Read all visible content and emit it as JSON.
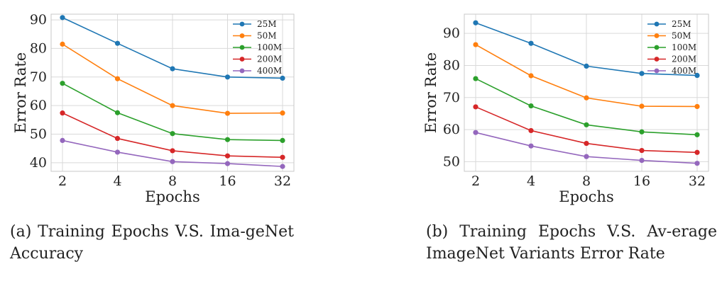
{
  "colors": {
    "25M": "#1f77b4",
    "50M": "#ff7f0e",
    "100M": "#2ca02c",
    "200M": "#d62728",
    "400M": "#9467bd"
  },
  "captions": [
    {
      "label": "(a)",
      "text": "Training Epochs V.S. ImageNet Accuracy",
      "rendered": "Training Epochs V.S. Ima-geNet Accuracy"
    },
    {
      "label": "(b)",
      "text": "Training Epochs V.S. Average ImageNet Variants Error Rate",
      "rendered": "Training Epochs V.S. Av-erage ImageNet Variants Error Rate"
    }
  ],
  "chart_data": [
    {
      "type": "line",
      "xlabel": "Epochs",
      "ylabel": "Error Rate",
      "x": [
        2,
        4,
        8,
        16,
        32
      ],
      "x_scale": "log2",
      "xticks": [
        "2",
        "4",
        "8",
        "16",
        "32"
      ],
      "ylim": [
        37,
        92
      ],
      "yticks": [
        40,
        50,
        60,
        70,
        80,
        90
      ],
      "grid": true,
      "legend_position": "top-right",
      "series": [
        {
          "name": "25M",
          "values": [
            90.8,
            81.8,
            72.9,
            70.0,
            69.6
          ]
        },
        {
          "name": "50M",
          "values": [
            81.5,
            69.4,
            60.0,
            57.3,
            57.4
          ]
        },
        {
          "name": "100M",
          "values": [
            67.8,
            57.5,
            50.2,
            48.1,
            47.8
          ]
        },
        {
          "name": "200M",
          "values": [
            57.4,
            48.5,
            44.2,
            42.4,
            41.9
          ]
        },
        {
          "name": "400M",
          "values": [
            47.8,
            43.7,
            40.4,
            39.7,
            38.7
          ]
        }
      ]
    },
    {
      "type": "line",
      "xlabel": "Epochs",
      "ylabel": "Error Rate",
      "x": [
        2,
        4,
        8,
        16,
        32
      ],
      "x_scale": "log2",
      "xticks": [
        "2",
        "4",
        "8",
        "16",
        "32"
      ],
      "ylim": [
        47,
        96
      ],
      "yticks": [
        50,
        60,
        70,
        80,
        90
      ],
      "grid": true,
      "legend_position": "top-right",
      "series": [
        {
          "name": "25M",
          "values": [
            93.3,
            86.9,
            79.8,
            77.5,
            76.9
          ]
        },
        {
          "name": "50M",
          "values": [
            86.5,
            76.8,
            69.9,
            67.3,
            67.2
          ]
        },
        {
          "name": "100M",
          "values": [
            75.9,
            67.4,
            61.5,
            59.3,
            58.4
          ]
        },
        {
          "name": "200M",
          "values": [
            67.1,
            59.7,
            55.7,
            53.5,
            52.9
          ]
        },
        {
          "name": "400M",
          "values": [
            59.1,
            54.9,
            51.6,
            50.4,
            49.5
          ]
        }
      ]
    }
  ]
}
